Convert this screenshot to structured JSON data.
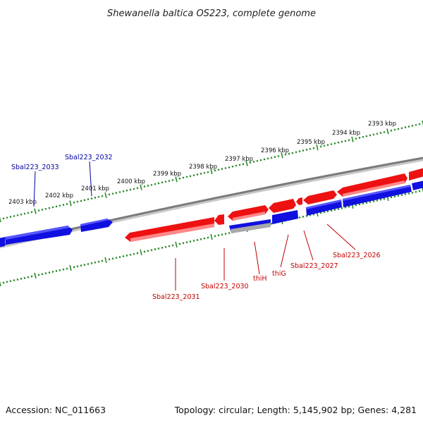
{
  "title": "Shewanella baltica OS223, complete genome",
  "accession": "Accession: NC_011663",
  "topology": "Topology: circular; Length: 5,145,902 bp; Genes: 4,281",
  "scale_labels": [
    "2393 kbp",
    "2394 kbp",
    "2395 kbp",
    "2396 kbp",
    "2397 kbp",
    "2398 kbp",
    "2399 kbp",
    "2400 kbp",
    "2401 kbp",
    "2402 kbp",
    "2403 kbp"
  ],
  "gene_labels": {
    "sbal223_2033": "Sbal223_2033",
    "sbal223_2032": "Sbal223_2032",
    "sbal223_2031": "Sbal223_2031",
    "sbal223_2030": "Sbal223_2030",
    "thih": "thiH",
    "thig": "thiG",
    "sbal223_2027": "Sbal223_2027",
    "sbal223_2026": "Sbal223_2026"
  },
  "colors": {
    "forward_strand": "#ee1111",
    "reverse_strand": "#1010e0",
    "rna_gene": "#a0a0a0",
    "backbone": "#808080",
    "tick": "#2a8a2a",
    "label_forward": "#c00000",
    "label_reverse": "#0000a0"
  }
}
